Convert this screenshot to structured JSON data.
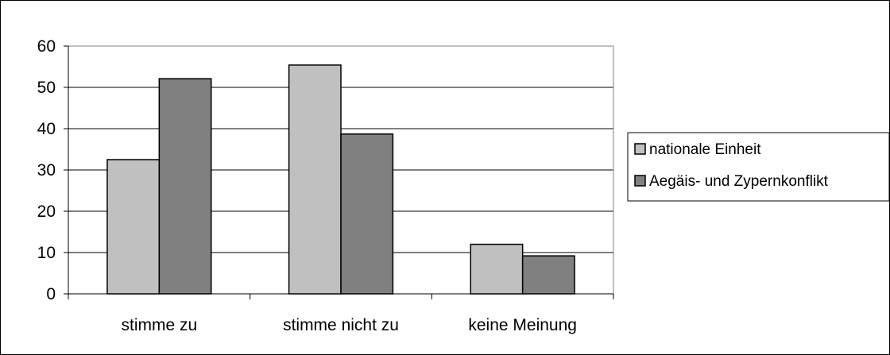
{
  "chart_data": {
    "type": "bar",
    "categories": [
      "stimme zu",
      "stimme nicht zu",
      "keine Meinung"
    ],
    "series": [
      {
        "name": "nationale Einheit",
        "values": [
          32.5,
          55.4,
          12.0
        ],
        "color": "#c0c0c0"
      },
      {
        "name": "Aegäis- und Zypernkonflikt",
        "values": [
          52.1,
          38.7,
          9.2
        ],
        "color": "#808080"
      }
    ],
    "title": "",
    "xlabel": "",
    "ylabel": "",
    "ylim": [
      0,
      60
    ],
    "yticks": [
      0,
      10,
      20,
      30,
      40,
      50,
      60
    ],
    "grid": true,
    "legend_position": "right"
  }
}
